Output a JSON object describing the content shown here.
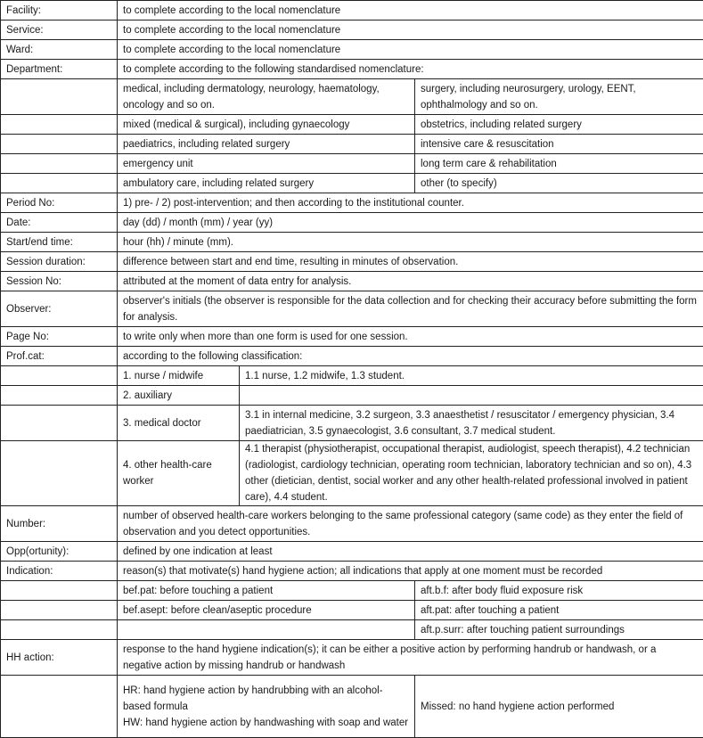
{
  "rows": {
    "facility": {
      "label": "Facility:",
      "value": "to complete according to the local nomenclature"
    },
    "service": {
      "label": "Service:",
      "value": "to complete according to the local nomenclature"
    },
    "ward": {
      "label": "Ward:",
      "value": "to complete according to the local nomenclature"
    },
    "department": {
      "label": "Department:",
      "value": "to complete according to the following standardised nomenclature:",
      "options": [
        [
          "medical, including dermatology, neurology, haematology, oncology and so on.",
          "surgery, including neurosurgery, urology, EENT, ophthalmology and so on."
        ],
        [
          "mixed (medical & surgical), including gynaecology",
          "obstetrics, including related surgery"
        ],
        [
          "paediatrics, including related surgery",
          "intensive care & resuscitation"
        ],
        [
          "emergency unit",
          "long term care & rehabilitation"
        ],
        [
          "ambulatory care, including related surgery",
          "other (to specify)"
        ]
      ]
    },
    "period": {
      "label": "Period No:",
      "value": "1) pre- / 2) post-intervention; and then according to the institutional counter."
    },
    "date": {
      "label": "Date:",
      "value": "day (dd) / month (mm) / year (yy)"
    },
    "time": {
      "label": "Start/end time:",
      "value": "hour (hh) / minute (mm)."
    },
    "duration": {
      "label": "Session duration:",
      "value": "difference between start and end time, resulting in minutes of observation."
    },
    "session": {
      "label": "Session No:",
      "value": "attributed at the moment of data entry for analysis."
    },
    "observer": {
      "label": "Observer:",
      "value": "observer's initials (the observer is responsible for the data collection and for checking their accuracy before submitting the form for analysis."
    },
    "page": {
      "label": "Page No:",
      "value": "to write only when more than one form is used for one session."
    },
    "profcat": {
      "label": "Prof.cat:",
      "value": "according to the following classification:",
      "categories": [
        {
          "name": "1. nurse / midwife",
          "detail": "1.1 nurse, 1.2 midwife, 1.3 student."
        },
        {
          "name": "2. auxiliary",
          "detail": ""
        },
        {
          "name": "3. medical doctor",
          "detail": "3.1 in internal medicine, 3.2 surgeon, 3.3 anaesthetist / resuscitator / emergency physician, 3.4 paediatrician, 3.5 gynaecologist, 3.6 consultant, 3.7 medical student."
        },
        {
          "name": "4. other health-care worker",
          "detail": "4.1 therapist (physiotherapist, occupational therapist, audiologist, speech therapist), 4.2 technician (radiologist, cardiology technician, operating room technician, laboratory technician and so on), 4.3 other (dietician, dentist, social worker and any other health-related professional involved in patient care), 4.4 student."
        }
      ]
    },
    "number": {
      "label": "Number:",
      "value": "number of observed health-care workers belonging to the same professional category (same code) as they enter the field of observation and you detect opportunities."
    },
    "opp": {
      "label": "Opp(ortunity):",
      "value": "defined by one indication at least"
    },
    "indication": {
      "label": "Indication:",
      "value": "reason(s) that motivate(s) hand hygiene action; all indications that apply at one moment must be recorded",
      "options": [
        [
          "bef.pat: before touching a patient",
          "aft.b.f: after body fluid exposure risk"
        ],
        [
          "bef.asept: before clean/aseptic procedure",
          "aft.pat: after touching a patient"
        ],
        [
          "",
          "aft.p.surr: after touching patient surroundings"
        ]
      ]
    },
    "hh": {
      "label": "HH action:",
      "value": "response to the hand hygiene indication(s); it can be either a positive action by performing handrub or handwash, or a negative action by missing handrub or handwash",
      "hr": "HR: hand hygiene action by handrubbing with an alcohol-based formula",
      "hw": "HW: hand hygiene action by handwashing with soap and water",
      "missed": "Missed: no hand hygiene action performed"
    }
  }
}
